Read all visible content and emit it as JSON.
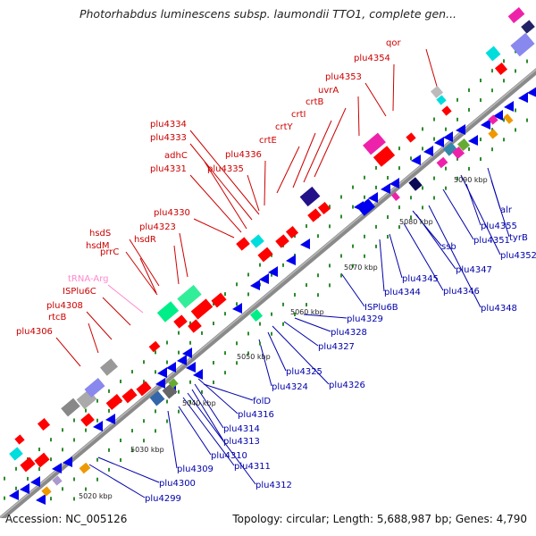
{
  "title": "Photorhabdus luminescens subsp. laumondii TTO1, complete gen...",
  "footer": {
    "accession": "Accession: NC_005126",
    "stats": "Topology: circular; Length: 5,688,987 bp; Genes: 4,790"
  },
  "colors": {
    "forward_label": "#cc0000",
    "reverse_label": "#0000aa",
    "trna_label": "#ff88cc",
    "backbone": "#8a8a8a",
    "ruler_dots": "#2e8b2e"
  },
  "ruler_ticks": [
    "5020 kbp",
    "5030 kbp",
    "5040 kbp",
    "5050 kbp",
    "5060 kbp",
    "5070 kbp",
    "5080 kbp",
    "5090 kbp"
  ],
  "forward_labels": [
    "plu4306",
    "rtcB",
    "plu4308",
    "ISPlu6C",
    "tRNA-Arg",
    "prrC",
    "hsdM",
    "hsdS",
    "hsdR",
    "plu4323",
    "plu4330",
    "plu4331",
    "adhC",
    "plu4333",
    "plu4334",
    "plu4335",
    "plu4336",
    "crtE",
    "crtY",
    "crtI",
    "crtB",
    "uvrA",
    "plu4353",
    "plu4354",
    "qor"
  ],
  "reverse_labels": [
    "plu4299",
    "plu4300",
    "plu4309",
    "plu4310",
    "plu4311",
    "plu4312",
    "plu4313",
    "plu4314",
    "plu4316",
    "folD",
    "plu4324",
    "plu4325",
    "plu4326",
    "plu4327",
    "plu4328",
    "plu4329",
    "ISPlu6B",
    "plu4344",
    "plu4345",
    "plu4346",
    "plu4347",
    "plu4348",
    "ssb",
    "plu4351",
    "plu4352",
    "plu4355",
    "alr",
    "tyrB"
  ]
}
